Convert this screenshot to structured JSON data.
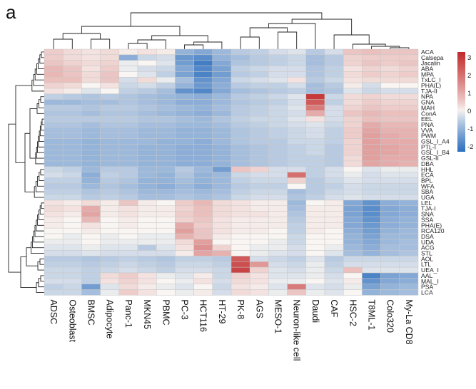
{
  "panel_label": "a",
  "chart_data": {
    "type": "heatmap",
    "title": "",
    "columns": [
      "ADSC",
      "Osteoblast",
      "BMSC",
      "Adipocyte",
      "Panc-1",
      "MKN45",
      "PBMC",
      "PC-3",
      "HCT116",
      "HT-29",
      "PK-8",
      "AGS",
      "MESO-1",
      "Neuron-like cell",
      "Daudi",
      "CAF",
      "HSC-2",
      "T8ML-1",
      "Colo320",
      "My-La CD8"
    ],
    "rows": [
      "ACA",
      "Calsepa",
      "Jacalin",
      "ABA",
      "MPA",
      "TxLC_I",
      "PHA(L)",
      "TJA-II",
      "NPA",
      "GNA",
      "MAH",
      "ConA",
      "EEL",
      "PNA",
      "VVA",
      "PWM",
      "GSL_I_A4",
      "PTL-I",
      "GSL_I_B4",
      "GSL-II",
      "DBA",
      "HHL",
      "ECA",
      "BPL",
      "WFA",
      "SBA",
      "UGA",
      "LEL",
      "TJA-I",
      "SNA",
      "SSA",
      "PHA(E)",
      "RCA120",
      "DSA",
      "UDA",
      "ACG",
      "STL",
      "AOL",
      "LTL",
      "UEA_I",
      "AAL",
      "MAL_I",
      "PSA",
      "LCA"
    ],
    "values": [
      [
        0.5,
        0.3,
        0.2,
        0.3,
        0.1,
        0.2,
        0.1,
        -1.0,
        -1.2,
        -0.9,
        -0.6,
        -0.5,
        -0.3,
        -0.2,
        -0.6,
        -0.3,
        0.6,
        0.7,
        0.6,
        0.6
      ],
      [
        0.5,
        0.3,
        0.2,
        0.3,
        -1.1,
        -0.4,
        -0.3,
        -1.5,
        -1.7,
        -1.0,
        -0.8,
        -0.6,
        -0.5,
        -0.4,
        -0.8,
        -0.6,
        0.4,
        0.5,
        0.5,
        0.5
      ],
      [
        0.6,
        0.4,
        0.3,
        0.4,
        -0.1,
        0.0,
        -0.2,
        -1.4,
        -2.0,
        -1.2,
        -0.7,
        -0.6,
        -0.5,
        -0.4,
        -0.8,
        -0.6,
        0.4,
        0.6,
        0.5,
        0.6
      ],
      [
        0.8,
        0.6,
        0.2,
        0.5,
        -0.1,
        -0.3,
        -0.4,
        -1.2,
        -1.8,
        -1.3,
        -0.5,
        -0.4,
        -0.3,
        -0.3,
        -0.7,
        -0.5,
        0.2,
        0.4,
        0.3,
        0.4
      ],
      [
        0.8,
        0.6,
        0.3,
        0.6,
        0.0,
        -0.2,
        -0.5,
        -1.3,
        -1.9,
        -1.4,
        -0.6,
        -0.5,
        -0.3,
        -0.3,
        -0.7,
        -0.5,
        0.3,
        0.5,
        0.4,
        0.5
      ],
      [
        0.7,
        0.7,
        0.3,
        0.6,
        -0.3,
        0.3,
        -0.1,
        -0.8,
        -1.6,
        -1.2,
        -0.4,
        -0.3,
        -0.2,
        0.2,
        -0.6,
        -0.4,
        0.2,
        0.3,
        0.3,
        0.3
      ],
      [
        0.4,
        0.3,
        0.0,
        0.2,
        -0.4,
        -0.3,
        -0.5,
        -1.0,
        -1.5,
        -1.1,
        -0.6,
        -0.5,
        -0.5,
        -0.3,
        -0.8,
        -0.6,
        0.1,
        -0.3,
        0.0,
        0.0
      ],
      [
        0.2,
        0.1,
        -0.2,
        0.0,
        -0.5,
        -0.6,
        -0.8,
        -1.6,
        -1.8,
        -1.2,
        -0.8,
        -0.7,
        -0.6,
        -0.5,
        -0.8,
        -0.7,
        -0.2,
        -0.4,
        -0.3,
        -0.3
      ],
      [
        -0.5,
        -0.6,
        -0.7,
        -0.6,
        -0.7,
        -0.8,
        -0.9,
        -1.0,
        -1.1,
        -0.9,
        -0.6,
        -0.5,
        -0.4,
        -0.2,
        3.0,
        -0.4,
        0.3,
        0.4,
        0.3,
        0.3
      ],
      [
        -0.9,
        -0.9,
        -0.8,
        -0.8,
        -0.7,
        -0.8,
        -0.9,
        -1.1,
        -1.1,
        -0.9,
        -0.7,
        -0.6,
        -0.5,
        -0.3,
        2.4,
        -0.5,
        0.3,
        0.5,
        0.4,
        0.4
      ],
      [
        -0.6,
        -0.6,
        -0.7,
        -0.6,
        -0.6,
        -0.7,
        -0.8,
        -0.9,
        -1.0,
        -0.8,
        -0.6,
        -0.5,
        -0.4,
        -0.2,
        1.8,
        -0.3,
        0.4,
        0.6,
        0.5,
        0.5
      ],
      [
        -0.7,
        -0.7,
        -0.8,
        -0.7,
        -0.7,
        -0.8,
        -0.9,
        -1.0,
        -1.1,
        -0.9,
        -0.6,
        -0.5,
        -0.4,
        -0.3,
        1.0,
        -0.3,
        0.6,
        0.8,
        0.7,
        0.7
      ],
      [
        -0.6,
        -0.6,
        -0.6,
        -0.6,
        -0.6,
        -0.7,
        -0.7,
        -0.8,
        -0.9,
        -0.7,
        -0.5,
        -0.4,
        -0.4,
        -0.2,
        0.2,
        -0.3,
        0.4,
        0.7,
        0.6,
        0.6
      ],
      [
        -0.7,
        -0.7,
        -0.8,
        -0.7,
        -0.7,
        -0.8,
        -0.8,
        -0.9,
        -0.9,
        -0.8,
        -0.6,
        -0.5,
        -0.4,
        -0.3,
        -0.2,
        -0.4,
        0.4,
        1.0,
        0.8,
        0.8
      ],
      [
        -0.8,
        -0.8,
        -0.9,
        -0.8,
        -0.8,
        -0.9,
        -0.9,
        -1.0,
        -1.0,
        -0.9,
        -0.7,
        -0.6,
        -0.5,
        -0.4,
        -0.3,
        -0.5,
        0.5,
        1.1,
        0.9,
        0.9
      ],
      [
        -0.8,
        -0.8,
        -0.9,
        -0.8,
        -0.8,
        -0.9,
        -0.9,
        -1.0,
        -1.0,
        -0.9,
        -0.7,
        -0.6,
        -0.5,
        -0.4,
        -0.3,
        -0.5,
        0.5,
        1.2,
        1.0,
        0.9
      ],
      [
        -0.9,
        -0.9,
        -1.0,
        -0.9,
        -0.9,
        -0.9,
        -1.0,
        -1.0,
        -1.1,
        -0.9,
        -0.7,
        -0.6,
        -0.6,
        -0.4,
        -0.4,
        -0.5,
        0.4,
        1.2,
        1.0,
        1.0
      ],
      [
        -0.9,
        -0.9,
        -1.0,
        -0.9,
        -0.9,
        -1.0,
        -1.0,
        -1.1,
        -1.1,
        -1.0,
        -0.8,
        -0.7,
        -0.6,
        -0.5,
        -0.4,
        -0.6,
        0.4,
        1.2,
        1.1,
        1.0
      ],
      [
        -0.9,
        -0.9,
        -1.0,
        -0.9,
        -0.9,
        -1.0,
        -1.0,
        -1.1,
        -1.1,
        -1.0,
        -0.8,
        -0.7,
        -0.6,
        -0.5,
        -0.4,
        -0.6,
        0.4,
        1.2,
        1.1,
        1.0
      ],
      [
        -0.9,
        -0.9,
        -1.0,
        -0.9,
        -0.9,
        -1.0,
        -1.0,
        -1.1,
        -1.1,
        -1.0,
        -0.8,
        -0.7,
        -0.6,
        -0.5,
        -0.5,
        -0.6,
        0.3,
        1.2,
        1.0,
        1.0
      ],
      [
        -0.9,
        -0.9,
        -1.0,
        -0.9,
        -0.9,
        -1.0,
        -1.0,
        -1.1,
        -1.1,
        -1.0,
        -0.8,
        -0.7,
        -0.6,
        -0.5,
        -0.5,
        -0.6,
        0.3,
        1.1,
        1.0,
        0.9
      ],
      [
        -0.4,
        -0.5,
        -0.9,
        -0.6,
        -0.6,
        -0.9,
        -0.9,
        -0.6,
        -0.9,
        -1.4,
        0.6,
        0.4,
        -0.3,
        -0.3,
        -0.5,
        -0.3,
        0.0,
        -0.2,
        -0.1,
        -0.1
      ],
      [
        -0.3,
        -0.4,
        -1.1,
        -0.5,
        -0.6,
        -0.9,
        -1.0,
        -0.7,
        -1.0,
        -0.9,
        -0.4,
        -0.3,
        -0.3,
        2.0,
        -0.5,
        -0.3,
        -0.1,
        -0.3,
        -0.2,
        -0.2
      ],
      [
        -0.5,
        -0.5,
        -1.0,
        -0.6,
        -0.7,
        -1.0,
        -1.0,
        -0.8,
        -1.0,
        -0.9,
        -0.5,
        -0.4,
        -0.4,
        0.4,
        -0.6,
        -0.4,
        -0.2,
        -0.3,
        -0.3,
        -0.3
      ],
      [
        -0.6,
        -0.6,
        -0.9,
        -0.7,
        -0.8,
        -1.0,
        -1.1,
        -0.9,
        -1.1,
        -0.9,
        -0.6,
        -0.5,
        -0.5,
        0.0,
        -0.6,
        -0.5,
        -0.3,
        -0.4,
        -0.4,
        -0.4
      ],
      [
        -0.5,
        -0.5,
        -0.7,
        -0.6,
        -0.7,
        -0.9,
        -0.9,
        -0.8,
        -0.9,
        -0.8,
        -0.5,
        -0.4,
        -0.4,
        -0.8,
        -0.6,
        -0.4,
        -0.3,
        -0.4,
        -0.4,
        -0.4
      ],
      [
        -0.4,
        -0.4,
        -0.6,
        -0.5,
        -0.6,
        -0.8,
        -0.8,
        -0.7,
        -0.8,
        -0.7,
        -0.4,
        -0.3,
        -0.3,
        -0.7,
        -0.5,
        -0.3,
        -0.2,
        -0.3,
        -0.3,
        -0.3
      ],
      [
        0.2,
        0.1,
        0.3,
        0.1,
        0.6,
        0.1,
        0.0,
        0.5,
        0.8,
        0.3,
        0.2,
        0.1,
        0.1,
        -0.9,
        0.0,
        0.1,
        -1.2,
        -1.6,
        -1.1,
        -1.0
      ],
      [
        0.3,
        0.2,
        1.0,
        0.1,
        0.2,
        0.1,
        0.1,
        0.4,
        0.7,
        0.3,
        0.2,
        0.1,
        0.1,
        -0.8,
        0.1,
        0.1,
        -1.3,
        -1.7,
        -1.2,
        -1.1
      ],
      [
        0.2,
        0.1,
        1.1,
        0.1,
        0.2,
        0.1,
        0.1,
        0.5,
        0.7,
        0.3,
        0.2,
        0.2,
        0.1,
        -0.7,
        0.1,
        0.1,
        -1.3,
        -1.7,
        -1.2,
        -1.1
      ],
      [
        0.1,
        0.0,
        0.8,
        0.0,
        0.1,
        0.0,
        0.0,
        0.4,
        0.6,
        0.2,
        0.1,
        0.1,
        0.1,
        -0.6,
        0.1,
        0.1,
        -1.2,
        -1.6,
        -1.1,
        -1.0
      ],
      [
        0.1,
        0.0,
        0.2,
        0.0,
        0.1,
        0.0,
        0.0,
        1.0,
        0.5,
        0.2,
        0.1,
        0.1,
        0.1,
        -0.5,
        0.1,
        0.1,
        -1.2,
        -1.5,
        -1.1,
        -1.0
      ],
      [
        0.0,
        0.0,
        0.1,
        0.0,
        0.0,
        0.0,
        0.0,
        1.2,
        0.6,
        0.2,
        0.1,
        0.1,
        0.0,
        -0.5,
        0.1,
        0.0,
        -1.1,
        -1.4,
        -1.0,
        -0.9
      ],
      [
        0.0,
        -0.1,
        0.0,
        -0.1,
        0.0,
        -0.1,
        -0.1,
        0.9,
        0.6,
        0.1,
        0.0,
        0.0,
        0.0,
        -0.4,
        0.0,
        0.0,
        -1.0,
        -1.3,
        -0.9,
        -0.9
      ],
      [
        -0.1,
        -0.1,
        0.0,
        -0.1,
        -0.1,
        -0.1,
        -0.1,
        0.3,
        1.2,
        0.0,
        0.0,
        0.0,
        -0.1,
        -0.4,
        0.0,
        0.0,
        -1.0,
        -1.2,
        -0.9,
        -0.8
      ],
      [
        -0.2,
        -0.2,
        -0.1,
        -0.2,
        -0.2,
        -0.6,
        -0.2,
        0.2,
        1.4,
        0.4,
        0.0,
        -0.1,
        -0.1,
        -0.3,
        0.0,
        -0.1,
        -0.9,
        -1.1,
        -0.8,
        -0.8
      ],
      [
        -0.3,
        -0.3,
        -0.2,
        -0.3,
        -0.3,
        -0.3,
        -0.3,
        0.1,
        1.1,
        0.9,
        0.0,
        -0.1,
        -0.2,
        -0.3,
        0.0,
        -0.2,
        -0.8,
        -1.0,
        -0.8,
        -0.7
      ],
      [
        -0.6,
        -0.6,
        -0.7,
        -0.6,
        -0.5,
        -0.6,
        -0.7,
        -0.5,
        -0.5,
        -0.6,
        2.4,
        -0.3,
        -0.4,
        -0.5,
        -0.2,
        -0.6,
        -0.4,
        -0.4,
        -0.4,
        -0.4
      ],
      [
        -0.5,
        -0.5,
        -0.6,
        -0.5,
        -0.4,
        -0.5,
        -0.6,
        -0.4,
        -0.4,
        -0.5,
        2.6,
        1.3,
        -0.3,
        -0.4,
        -0.1,
        -0.5,
        -0.3,
        -0.3,
        -0.3,
        -0.3
      ],
      [
        -0.4,
        -0.4,
        -0.5,
        -0.4,
        -0.3,
        -0.4,
        -0.5,
        -0.3,
        -0.3,
        -0.4,
        2.8,
        0.4,
        -0.2,
        -0.3,
        -0.1,
        -0.4,
        0.7,
        -0.2,
        -0.2,
        -0.2
      ],
      [
        -0.4,
        -0.4,
        -0.5,
        0.3,
        0.5,
        0.2,
        -0.1,
        -0.2,
        0.1,
        -0.4,
        0.4,
        0.2,
        -0.2,
        -0.2,
        -0.1,
        -0.3,
        0.0,
        -1.9,
        -1.3,
        -1.2
      ],
      [
        -0.3,
        -0.3,
        -0.5,
        0.2,
        0.4,
        0.2,
        0.0,
        -0.1,
        0.2,
        -0.3,
        0.3,
        0.2,
        -0.1,
        -0.1,
        0.0,
        -0.2,
        0.1,
        -1.6,
        -1.2,
        -1.1
      ],
      [
        -0.5,
        -0.4,
        -1.4,
        -0.2,
        0.3,
        0.1,
        -0.1,
        -0.2,
        0.0,
        -0.4,
        0.2,
        0.1,
        -0.2,
        1.8,
        -0.2,
        -0.3,
        -0.1,
        -1.3,
        -1.0,
        -0.9
      ],
      [
        -0.4,
        -0.4,
        -0.8,
        -0.1,
        0.5,
        0.2,
        0.0,
        -0.1,
        0.1,
        -0.3,
        0.3,
        0.2,
        -0.1,
        0.6,
        -0.1,
        -0.2,
        0.0,
        -1.0,
        -0.9,
        -0.8
      ]
    ],
    "legend": {
      "ticks": [
        3,
        2,
        1,
        0,
        -1,
        -2
      ],
      "range": [
        -2.3,
        3.3
      ]
    },
    "colors": {
      "low": "#2c6fbf",
      "mid": "#f8f5f2",
      "high": "#c22a2a",
      "cell_border": "#c8c8c8"
    },
    "column_dendrogram": true,
    "row_dendrogram": true
  }
}
